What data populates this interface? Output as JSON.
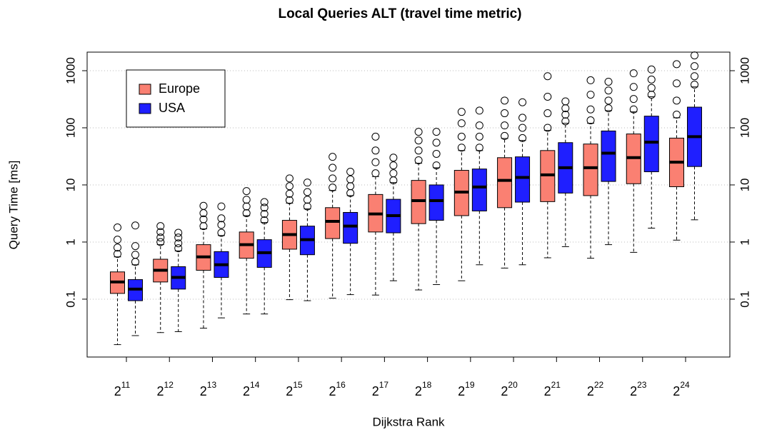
{
  "chart_data": {
    "type": "boxplot",
    "title": "Local Queries ALT (travel time metric)",
    "x_label": "Dijkstra Rank",
    "y_label": "Query Time [ms]",
    "categories": [
      {
        "base": "2",
        "exponent": "11"
      },
      {
        "base": "2",
        "exponent": "12"
      },
      {
        "base": "2",
        "exponent": "13"
      },
      {
        "base": "2",
        "exponent": "14"
      },
      {
        "base": "2",
        "exponent": "15"
      },
      {
        "base": "2",
        "exponent": "16"
      },
      {
        "base": "2",
        "exponent": "17"
      },
      {
        "base": "2",
        "exponent": "18"
      },
      {
        "base": "2",
        "exponent": "19"
      },
      {
        "base": "2",
        "exponent": "20"
      },
      {
        "base": "2",
        "exponent": "21"
      },
      {
        "base": "2",
        "exponent": "22"
      },
      {
        "base": "2",
        "exponent": "23"
      },
      {
        "base": "2",
        "exponent": "24"
      }
    ],
    "ylog": true,
    "ylim": [
      0.0097,
      2113
    ],
    "yticks": [
      0.1,
      1,
      10,
      100,
      1000
    ],
    "grid": true,
    "legend": "topleft",
    "series": [
      {
        "name": "Europe",
        "color": "#fa8072",
        "whisker_low": [
          0.016,
          0.026,
          0.031,
          0.055,
          0.098,
          0.104,
          0.118,
          0.145,
          0.21,
          0.35,
          0.53,
          0.52,
          0.66,
          1.08
        ],
        "q1": [
          0.126,
          0.2,
          0.32,
          0.52,
          0.75,
          1.15,
          1.5,
          2.1,
          2.9,
          4,
          5.1,
          6.5,
          10.5,
          9.3
        ],
        "median": [
          0.2,
          0.32,
          0.55,
          0.9,
          1.35,
          2.3,
          3.1,
          5.3,
          7.5,
          12,
          15,
          20,
          30,
          25
        ],
        "q3": [
          0.3,
          0.5,
          0.9,
          1.5,
          2.4,
          4,
          6.8,
          12,
          18,
          30,
          40,
          52,
          78,
          66
        ],
        "whisker_high": [
          0.55,
          0.9,
          1.7,
          2.9,
          4.8,
          8,
          14,
          24,
          40,
          65,
          90,
          120,
          190,
          150
        ],
        "outliers": [
          [
            0.62,
            0.8,
            1.1,
            1.8
          ],
          [
            1.0,
            1.2,
            1.5,
            1.9
          ],
          [
            1.9,
            2.5,
            3.2,
            4.3
          ],
          [
            3.2,
            4.2,
            5.5,
            7.8
          ],
          [
            5.4,
            7,
            9.5,
            13
          ],
          [
            9,
            13,
            20,
            31
          ],
          [
            16,
            25,
            40,
            70
          ],
          [
            27,
            40,
            60,
            85
          ],
          [
            45,
            70,
            120,
            190
          ],
          [
            72,
            110,
            180,
            300
          ],
          [
            100,
            180,
            350,
            800
          ],
          [
            135,
            210,
            380,
            680
          ],
          [
            210,
            320,
            520,
            900
          ],
          [
            170,
            300,
            600,
            1300
          ]
        ]
      },
      {
        "name": "USA",
        "color": "#1f1fff",
        "whisker_low": [
          0.023,
          0.027,
          0.047,
          0.055,
          0.094,
          0.12,
          0.21,
          0.18,
          0.4,
          0.4,
          0.83,
          0.9,
          1.75,
          2.45
        ],
        "q1": [
          0.094,
          0.15,
          0.24,
          0.36,
          0.6,
          0.95,
          1.45,
          2.4,
          3.5,
          5,
          7.2,
          11.5,
          17,
          21
        ],
        "median": [
          0.15,
          0.24,
          0.4,
          0.65,
          1.1,
          1.9,
          2.9,
          5.3,
          9.2,
          13.5,
          20,
          36,
          56,
          70
        ],
        "q3": [
          0.22,
          0.37,
          0.68,
          1.1,
          1.9,
          3.3,
          5.6,
          10,
          19,
          31,
          55,
          88,
          160,
          230
        ],
        "whisker_high": [
          0.4,
          0.7,
          1.3,
          2.2,
          3.8,
          6.5,
          11,
          20,
          40,
          60,
          120,
          200,
          350,
          520
        ],
        "outliers": [
          [
            0.45,
            0.6,
            0.85,
            1.95
          ],
          [
            0.78,
            0.95,
            1.2,
            1.45
          ],
          [
            1.45,
            2,
            2.6,
            4.2
          ],
          [
            2.4,
            3.1,
            4,
            5
          ],
          [
            4.2,
            5.5,
            7.5,
            11
          ],
          [
            7.2,
            9.5,
            12.5,
            17
          ],
          [
            12,
            16,
            22,
            30
          ],
          [
            22,
            35,
            55,
            85
          ],
          [
            45,
            70,
            110,
            200
          ],
          [
            66,
            100,
            150,
            280
          ],
          [
            130,
            170,
            220,
            290
          ],
          [
            220,
            300,
            450,
            640
          ],
          [
            380,
            500,
            700,
            1050
          ],
          [
            570,
            800,
            1200,
            1850
          ]
        ]
      }
    ]
  }
}
